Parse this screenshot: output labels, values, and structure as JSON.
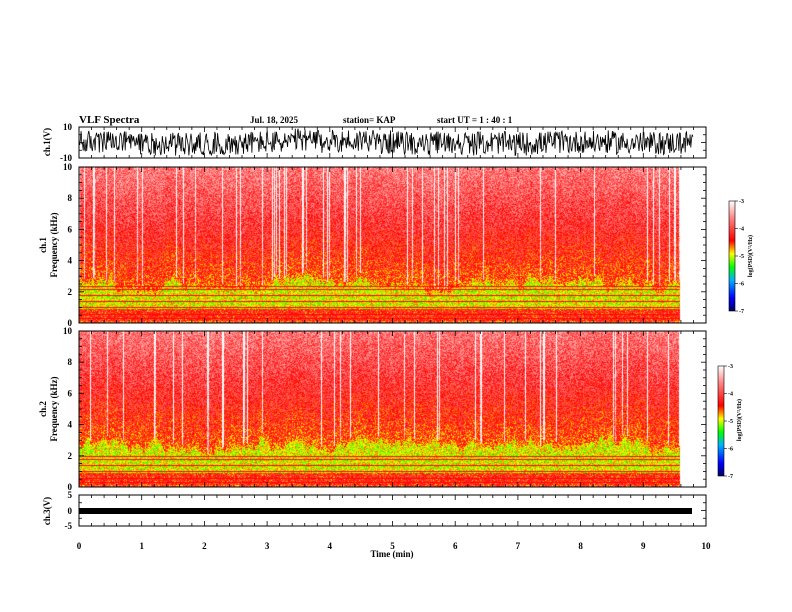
{
  "header": {
    "title": "VLF Spectra",
    "date": "Jul. 18, 2025",
    "station": "station= KAP",
    "start": "start UT =  1 : 40 : 1"
  },
  "chart_data": [
    {
      "type": "line",
      "name": "ch1-waveform",
      "ylabel": "ch.1(V)",
      "ylim": [
        -10,
        10
      ],
      "yticks": [
        "10",
        "-10"
      ],
      "xlim": [
        0,
        10
      ],
      "data_extent_min": 9.8,
      "description_of_values": "noisy waveform oscillating roughly between -7 V and +9 V"
    },
    {
      "type": "heatmap",
      "name": "ch1-spectrogram",
      "ylabel_line1": "ch.1",
      "ylabel_line2": "Frequency (kHz)",
      "ylim": [
        0,
        10
      ],
      "yticks": [
        "0",
        "2",
        "4",
        "6",
        "8",
        "10"
      ],
      "xlim": [
        0,
        10
      ],
      "data_extent_min": 9.8,
      "colorbar": {
        "label": "log(PSD)(V²/Hz)",
        "range": [
          -7,
          -3
        ],
        "ticks": [
          "-3",
          "-4",
          "-5",
          "-6",
          "-7"
        ]
      },
      "lines_khz": [
        0.3,
        0.6,
        1.0,
        1.4,
        1.8,
        2.2,
        2.4
      ]
    },
    {
      "type": "heatmap",
      "name": "ch2-spectrogram",
      "ylabel_line1": "ch.2",
      "ylabel_line2": "Frequency (kHz)",
      "ylim": [
        0,
        10
      ],
      "yticks": [
        "0",
        "2",
        "4",
        "6",
        "8",
        "10"
      ],
      "xlim": [
        0,
        10
      ],
      "data_extent_min": 9.8,
      "colorbar": {
        "label": "log(PSD)(V²/Hz)",
        "range": [
          -7,
          -3
        ],
        "ticks": [
          "-3",
          "-4",
          "-5",
          "-6",
          "-7"
        ]
      },
      "lines_khz": [
        0.3,
        0.6,
        1.0,
        1.4,
        1.8,
        2.0
      ]
    },
    {
      "type": "line",
      "name": "ch3-waveform",
      "ylabel": "ch.3(V)",
      "ylim": [
        -5,
        5
      ],
      "yticks": [
        "5",
        "0",
        "-5"
      ],
      "xlim": [
        0,
        10
      ],
      "data_extent_min": 9.8,
      "value_level": -0.5
    }
  ],
  "xaxis": {
    "label": "Time (min)",
    "ticks": [
      "0",
      "1",
      "2",
      "3",
      "4",
      "5",
      "6",
      "7",
      "8",
      "9",
      "10"
    ]
  },
  "colors": {
    "background": "#ffffff",
    "ink": "#000000",
    "cmap": [
      "#000066",
      "#0000ff",
      "#00b0ff",
      "#00ff00",
      "#ffff00",
      "#ff0000",
      "#ff8888",
      "#ffffff"
    ]
  }
}
